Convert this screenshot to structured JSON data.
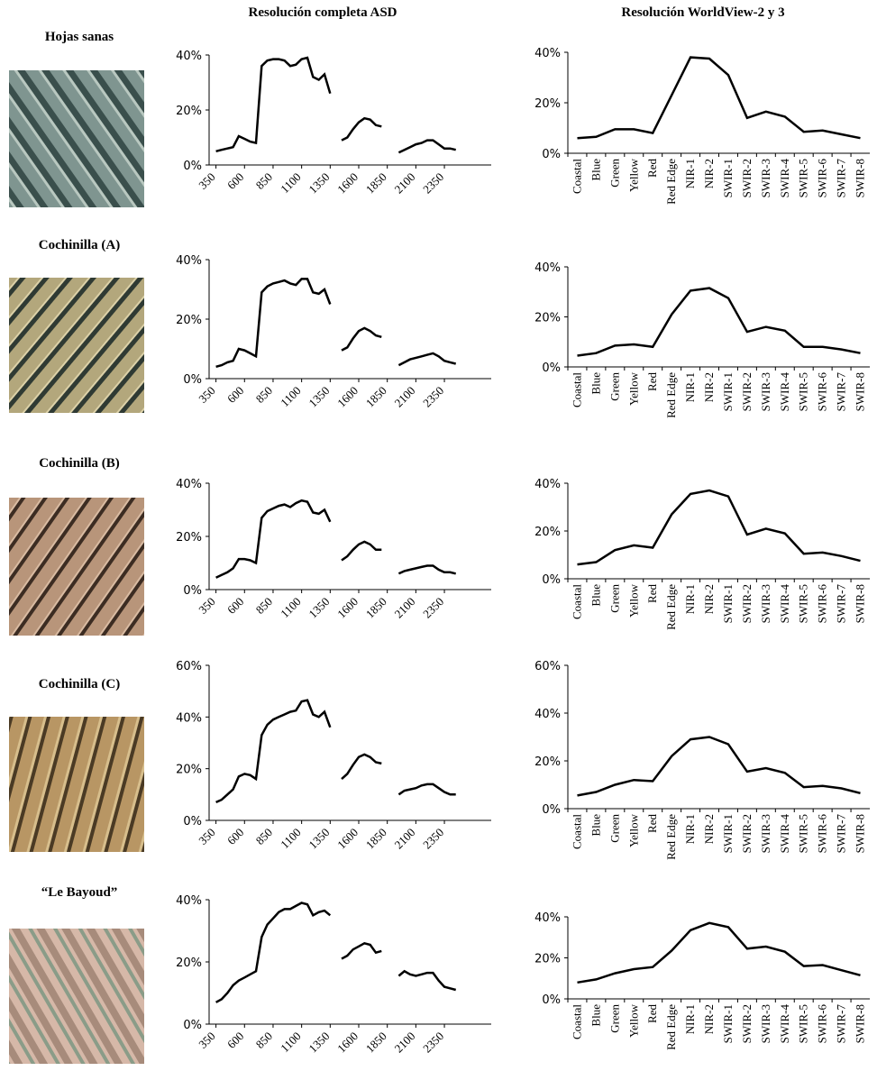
{
  "column_titles": [
    "Resolución completa ASD",
    "Resolución WorldView-2 y 3"
  ],
  "rows": [
    "Hojas sanas",
    "Cochinilla (A)",
    "Cochinilla (B)",
    "Cochinilla (C)",
    "“Le Bayoud”"
  ],
  "chart_data": [
    {
      "type": "line",
      "x": [
        350,
        400,
        450,
        500,
        550,
        600,
        650,
        700,
        750,
        800,
        850,
        900,
        950,
        1000,
        1050,
        1100,
        1150,
        1200,
        1250,
        1300,
        1350,
        1400,
        1450,
        1500,
        1550,
        1600,
        1650,
        1700,
        1750,
        1800,
        1875,
        1950,
        2000,
        2050,
        2100,
        2150,
        2200,
        2250,
        2300,
        2350,
        2400,
        2450
      ],
      "values": [
        5,
        5.5,
        6,
        6.5,
        10.5,
        9.5,
        8.5,
        8,
        36,
        38,
        38.5,
        38.5,
        38,
        36,
        36.5,
        38.5,
        39,
        32,
        31,
        33,
        26,
        null,
        9,
        10,
        13,
        15.5,
        17,
        16.5,
        14.5,
        14,
        null,
        4.5,
        5.5,
        6.5,
        7.5,
        8,
        9,
        9,
        7.5,
        6,
        6,
        5.5
      ],
      "color": "#000000",
      "xlim": [
        290,
        2760
      ],
      "xticks": [
        350,
        600,
        850,
        1100,
        1350,
        1600,
        1850,
        2100,
        2350
      ],
      "ylim": [
        0,
        40
      ],
      "yticks": [
        {
          "value": 0,
          "label": "0%"
        },
        {
          "value": 20,
          "label": "20%"
        },
        {
          "value": 40,
          "label": "40%"
        }
      ]
    },
    {
      "type": "line",
      "categories": [
        "Coastal",
        "Blue",
        "Green",
        "Yellow",
        "Red",
        "Red Edge",
        "NIR-1",
        "NIR-2",
        "SWIR-1",
        "SWIR-2",
        "SWIR-3",
        "SWIR-4",
        "SWIR-5",
        "SWIR-6",
        "SWIR-7",
        "SWIR-8"
      ],
      "values": [
        6,
        6.5,
        9.5,
        9.5,
        8,
        23,
        38,
        37.5,
        31,
        14,
        16.5,
        14.5,
        8.5,
        9,
        7.5,
        6
      ],
      "color": "#000000",
      "ylim": [
        0,
        40
      ],
      "yticks": [
        {
          "value": 0,
          "label": "0%"
        },
        {
          "value": 20,
          "label": "20%"
        },
        {
          "value": 40,
          "label": "40%"
        }
      ]
    },
    {
      "type": "line",
      "x": [
        350,
        400,
        450,
        500,
        550,
        600,
        650,
        700,
        750,
        800,
        850,
        900,
        950,
        1000,
        1050,
        1100,
        1150,
        1200,
        1250,
        1300,
        1350,
        1400,
        1450,
        1500,
        1550,
        1600,
        1650,
        1700,
        1750,
        1800,
        1875,
        1950,
        2000,
        2050,
        2100,
        2150,
        2200,
        2250,
        2300,
        2350,
        2400,
        2450
      ],
      "values": [
        4,
        4.5,
        5.5,
        6,
        10,
        9.5,
        8.5,
        7.5,
        29,
        31,
        32,
        32.5,
        33,
        32,
        31.5,
        33.5,
        33.5,
        29,
        28.5,
        30,
        25,
        null,
        9.5,
        10.5,
        13.5,
        16,
        17,
        16,
        14.5,
        14,
        null,
        4.5,
        5.5,
        6.5,
        7,
        7.5,
        8,
        8.5,
        7.5,
        6,
        5.5,
        5
      ],
      "color": "#000000",
      "xlim": [
        290,
        2760
      ],
      "xticks": [
        350,
        600,
        850,
        1100,
        1350,
        1600,
        1850,
        2100,
        2350
      ],
      "ylim": [
        0,
        40
      ],
      "yticks": [
        {
          "value": 0,
          "label": "0%"
        },
        {
          "value": 20,
          "label": "20%"
        },
        {
          "value": 40,
          "label": "40%"
        }
      ]
    },
    {
      "type": "line",
      "categories": [
        "Coastal",
        "Blue",
        "Green",
        "Yellow",
        "Red",
        "Red Edge",
        "NIR-1",
        "NIR-2",
        "SWIR-1",
        "SWIR-2",
        "SWIR-3",
        "SWIR-4",
        "SWIR-5",
        "SWIR-6",
        "SWIR-7",
        "SWIR-8"
      ],
      "values": [
        4.5,
        5.5,
        8.5,
        9,
        8,
        21,
        30.5,
        31.5,
        27.5,
        14,
        16,
        14.5,
        8,
        8,
        7,
        5.5
      ],
      "color": "#000000",
      "ylim": [
        0,
        40
      ],
      "yticks": [
        {
          "value": 0,
          "label": "0%"
        },
        {
          "value": 20,
          "label": "20%"
        },
        {
          "value": 40,
          "label": "40%"
        }
      ]
    },
    {
      "type": "line",
      "x": [
        350,
        400,
        450,
        500,
        550,
        600,
        650,
        700,
        750,
        800,
        850,
        900,
        950,
        1000,
        1050,
        1100,
        1150,
        1200,
        1250,
        1300,
        1350,
        1400,
        1450,
        1500,
        1550,
        1600,
        1650,
        1700,
        1750,
        1800,
        1875,
        1950,
        2000,
        2050,
        2100,
        2150,
        2200,
        2250,
        2300,
        2350,
        2400,
        2450
      ],
      "values": [
        4.5,
        5.5,
        6.5,
        8,
        11.5,
        11.5,
        11,
        10,
        27,
        29.5,
        30.5,
        31.5,
        32,
        31,
        32.5,
        33.5,
        33,
        29,
        28.5,
        30,
        25.5,
        null,
        11,
        12.5,
        15,
        17,
        18,
        17,
        15,
        15,
        null,
        6,
        7,
        7.5,
        8,
        8.5,
        9,
        9,
        7.5,
        6.5,
        6.5,
        6
      ],
      "color": "#000000",
      "xlim": [
        290,
        2760
      ],
      "xticks": [
        350,
        600,
        850,
        1100,
        1350,
        1600,
        1850,
        2100,
        2350
      ],
      "ylim": [
        0,
        40
      ],
      "yticks": [
        {
          "value": 0,
          "label": "0%"
        },
        {
          "value": 20,
          "label": "20%"
        },
        {
          "value": 40,
          "label": "40%"
        }
      ]
    },
    {
      "type": "line",
      "categories": [
        "Coastal",
        "Blue",
        "Green",
        "Yellow",
        "Red",
        "Red Edge",
        "NIR-1",
        "NIR-2",
        "SWIR-1",
        "SWIR-2",
        "SWIR-3",
        "SWIR-4",
        "SWIR-5",
        "SWIR-6",
        "SWIR-7",
        "SWIR-8"
      ],
      "values": [
        6,
        7,
        12,
        14,
        13,
        27,
        35.5,
        37,
        34.5,
        18.5,
        21,
        19,
        10.5,
        11,
        9.5,
        7.5
      ],
      "color": "#000000",
      "ylim": [
        0,
        40
      ],
      "yticks": [
        {
          "value": 0,
          "label": "0%"
        },
        {
          "value": 20,
          "label": "20%"
        },
        {
          "value": 40,
          "label": "40%"
        }
      ]
    },
    {
      "type": "line",
      "x": [
        350,
        400,
        450,
        500,
        550,
        600,
        650,
        700,
        750,
        800,
        850,
        900,
        950,
        1000,
        1050,
        1100,
        1150,
        1200,
        1250,
        1300,
        1350,
        1400,
        1450,
        1500,
        1550,
        1600,
        1650,
        1700,
        1750,
        1800,
        1875,
        1950,
        2000,
        2050,
        2100,
        2150,
        2200,
        2250,
        2300,
        2350,
        2400,
        2450
      ],
      "values": [
        7,
        8,
        10,
        12,
        17,
        18,
        17.5,
        16,
        33,
        37,
        39,
        40,
        41,
        42,
        42.5,
        46,
        46.5,
        41,
        40,
        42,
        36,
        null,
        16,
        18,
        21.5,
        24.5,
        25.5,
        24.5,
        22.5,
        22,
        null,
        10,
        11.5,
        12,
        12.5,
        13.5,
        14,
        14,
        12.5,
        11,
        10,
        10
      ],
      "color": "#000000",
      "xlim": [
        290,
        2760
      ],
      "xticks": [
        350,
        600,
        850,
        1100,
        1350,
        1600,
        1850,
        2100,
        2350
      ],
      "ylim": [
        0,
        60
      ],
      "yticks": [
        {
          "value": 0,
          "label": "0%"
        },
        {
          "value": 20,
          "label": "20%"
        },
        {
          "value": 40,
          "label": "40%"
        },
        {
          "value": 60,
          "label": "60%"
        }
      ]
    },
    {
      "type": "line",
      "categories": [
        "Coastal",
        "Blue",
        "Green",
        "Yellow",
        "Red",
        "Red Edge",
        "NIR-1",
        "NIR-2",
        "SWIR-1",
        "SWIR-2",
        "SWIR-3",
        "SWIR-4",
        "SWIR-5",
        "SWIR-6",
        "SWIR-7",
        "SWIR-8"
      ],
      "values": [
        5.5,
        7,
        10,
        12,
        11.5,
        22,
        29,
        30,
        27,
        15.5,
        17,
        15,
        9,
        9.5,
        8.5,
        6.5
      ],
      "color": "#000000",
      "ylim": [
        0,
        60
      ],
      "yticks": [
        {
          "value": 0,
          "label": "0%"
        },
        {
          "value": 20,
          "label": "20%"
        },
        {
          "value": 40,
          "label": "40%"
        },
        {
          "value": 60,
          "label": "60%"
        }
      ]
    },
    {
      "type": "line",
      "x": [
        350,
        400,
        450,
        500,
        550,
        600,
        650,
        700,
        750,
        800,
        850,
        900,
        950,
        1000,
        1050,
        1100,
        1150,
        1200,
        1250,
        1300,
        1350,
        1400,
        1450,
        1500,
        1550,
        1600,
        1650,
        1700,
        1750,
        1800,
        1875,
        1950,
        2000,
        2050,
        2100,
        2150,
        2200,
        2250,
        2300,
        2350,
        2400,
        2450
      ],
      "values": [
        7,
        8,
        10,
        12.5,
        14,
        15,
        16,
        17,
        28,
        32,
        34,
        36,
        37,
        37,
        38,
        39,
        38.5,
        35,
        36,
        36.5,
        35,
        null,
        21,
        22,
        24,
        25,
        26,
        25.5,
        23,
        23.5,
        null,
        15.5,
        17,
        16,
        15.5,
        16,
        16.5,
        16.5,
        14,
        12,
        11.5,
        11
      ],
      "color": "#000000",
      "xlim": [
        290,
        2760
      ],
      "xticks": [
        350,
        600,
        850,
        1100,
        1350,
        1600,
        1850,
        2100,
        2350
      ],
      "ylim": [
        0,
        40
      ],
      "yticks": [
        {
          "value": 0,
          "label": "0%"
        },
        {
          "value": 20,
          "label": "20%"
        },
        {
          "value": 40,
          "label": "40%"
        }
      ]
    },
    {
      "type": "line",
      "categories": [
        "Coastal",
        "Blue",
        "Green",
        "Yellow",
        "Red",
        "Red Edge",
        "NIR-1",
        "NIR-2",
        "SWIR-1",
        "SWIR-2",
        "SWIR-3",
        "SWIR-4",
        "SWIR-5",
        "SWIR-6",
        "SWIR-7",
        "SWIR-8"
      ],
      "values": [
        8,
        9.5,
        12.5,
        14.5,
        15.5,
        23.5,
        33.5,
        37,
        35,
        24.5,
        25.5,
        23,
        16,
        16.5,
        14,
        11.5
      ],
      "color": "#000000",
      "ylim": [
        0,
        40
      ],
      "yticks": [
        {
          "value": 0,
          "label": "0%"
        },
        {
          "value": 20,
          "label": "20%"
        },
        {
          "value": 40,
          "label": "40%"
        }
      ]
    }
  ]
}
